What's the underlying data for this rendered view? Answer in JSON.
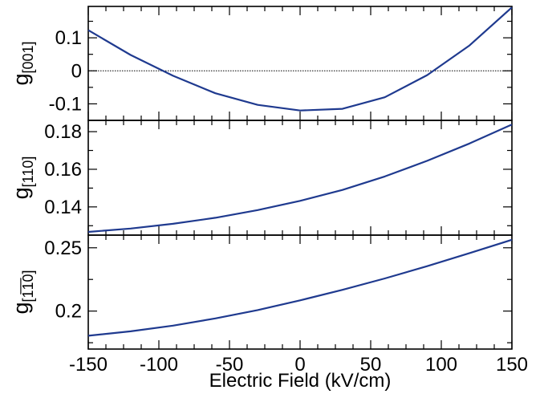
{
  "chart_data": [
    {
      "type": "line",
      "ylabel": {
        "main": "g",
        "sub": "[001]"
      },
      "xlim": [
        -150,
        150
      ],
      "ylim": [
        -0.15,
        0.195
      ],
      "yticks": [
        -0.1,
        0,
        0.1
      ],
      "yticklabels": [
        "-0.1",
        "0",
        "0.1"
      ],
      "zero_line": true,
      "series": [
        {
          "color": "#1f3a8f",
          "x": [
            -150,
            -120,
            -90,
            -60,
            -30,
            0,
            30,
            60,
            90,
            120,
            150
          ],
          "y": [
            0.123,
            0.048,
            -0.015,
            -0.068,
            -0.103,
            -0.12,
            -0.115,
            -0.08,
            -0.013,
            0.077,
            0.192
          ]
        }
      ]
    },
    {
      "type": "line",
      "ylabel": {
        "main": "g",
        "sub": "[110]"
      },
      "xlim": [
        -150,
        150
      ],
      "ylim": [
        0.125,
        0.186
      ],
      "yticks": [
        0.14,
        0.16,
        0.18
      ],
      "yticklabels": [
        "0.14",
        "0.16",
        "0.18"
      ],
      "series": [
        {
          "color": "#1f3a8f",
          "x": [
            -150,
            -120,
            -90,
            -60,
            -30,
            0,
            30,
            60,
            90,
            120,
            150
          ],
          "y": [
            0.1267,
            0.1285,
            0.131,
            0.1342,
            0.1383,
            0.1432,
            0.149,
            0.1562,
            0.1645,
            0.1737,
            0.1838
          ]
        }
      ]
    },
    {
      "type": "line",
      "ylabel": {
        "main": "g",
        "sub": "[1̅1̅0]"
      },
      "xlim": [
        -150,
        150
      ],
      "ylim": [
        0.17,
        0.26
      ],
      "yticks": [
        0.2,
        0.25
      ],
      "yticklabels": [
        "0.2",
        "0.25"
      ],
      "xticks": [
        -150,
        -100,
        -50,
        0,
        50,
        100,
        150
      ],
      "xticklabels": [
        "-150",
        "-100",
        "-50",
        "0",
        "50",
        "100",
        "150"
      ],
      "xlabel": "Electric Field (kV/cm)",
      "series": [
        {
          "color": "#1f3a8f",
          "x": [
            -150,
            -120,
            -90,
            -60,
            -30,
            0,
            30,
            60,
            90,
            120,
            150
          ],
          "y": [
            0.1805,
            0.184,
            0.1885,
            0.1942,
            0.2008,
            0.2085,
            0.2168,
            0.2258,
            0.2355,
            0.2458,
            0.2563
          ]
        }
      ]
    }
  ]
}
